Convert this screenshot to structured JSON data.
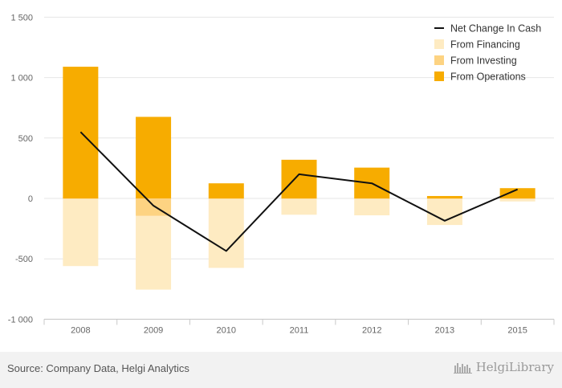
{
  "chart_data": {
    "type": "bar",
    "categories": [
      "2008",
      "2009",
      "2010",
      "2011",
      "2012",
      "2013",
      "2015"
    ],
    "series": [
      {
        "name": "From Operations",
        "kind": "bar",
        "color": "#f7ac00",
        "values": [
          1090,
          675,
          125,
          320,
          255,
          20,
          85
        ]
      },
      {
        "name": "From Investing",
        "kind": "bar",
        "color": "#fdd382",
        "values": [
          -5,
          -145,
          -5,
          -5,
          -5,
          -5,
          -5
        ]
      },
      {
        "name": "From Financing",
        "kind": "bar",
        "color": "#feebc2",
        "values": [
          -555,
          -610,
          -570,
          -130,
          -135,
          -215,
          -20
        ]
      },
      {
        "name": "Net Change In Cash",
        "kind": "line",
        "color": "#111111",
        "values": [
          550,
          -60,
          -435,
          200,
          125,
          -185,
          75
        ]
      }
    ],
    "legend_order": [
      "Net Change In Cash",
      "From Financing",
      "From Investing",
      "From Operations"
    ],
    "yticks": [
      1500,
      1000,
      500,
      0,
      -500,
      -1000
    ],
    "ytick_labels": [
      "1 500",
      "1 000",
      "500",
      "0",
      "-500",
      "-1 000"
    ],
    "ylim": [
      -1000,
      1500
    ],
    "grid": true,
    "legend_position": "top-right",
    "stacked": true
  },
  "footer": {
    "source": "Source: Company Data, Helgi Analytics",
    "brand": "HelgiLibrary"
  }
}
